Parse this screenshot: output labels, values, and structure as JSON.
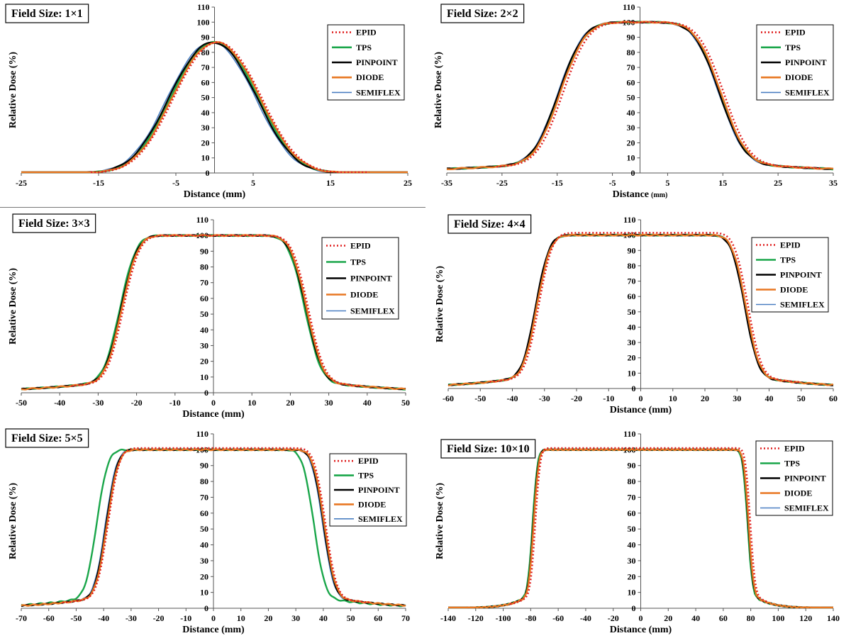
{
  "figure": {
    "legend_entries": [
      "EPID",
      "TPS",
      "PINPOINT",
      "DIODE",
      "SEMIFLEX"
    ],
    "colors": {
      "EPID": "#e02020",
      "TPS": "#1aa64a",
      "PINPOINT": "#000000",
      "DIODE": "#e87722",
      "SEMIFLEX": "#4a7fc1"
    }
  },
  "chart_data": [
    {
      "type": "line",
      "title": "Field Size: 1×1",
      "xlabel": "Distance (mm)",
      "ylabel": "Relative Dose (%)",
      "xlim": [
        -25,
        25
      ],
      "ylim": [
        0,
        110
      ],
      "xticks": [
        -25,
        -15,
        -5,
        5,
        15,
        25
      ],
      "yticks": [
        0,
        10,
        20,
        30,
        40,
        50,
        60,
        70,
        80,
        90,
        100,
        110
      ],
      "legend_position": "top-right",
      "profile": {
        "half_width": 5.7,
        "sigma": 3.8,
        "tail": 0.0
      },
      "series": [
        {
          "name": "EPID",
          "x_range": [
            -16,
            20
          ],
          "shift": 0.4,
          "scale": 1.0,
          "dotted": true
        },
        {
          "name": "TPS",
          "x_range": [
            -25,
            25
          ],
          "shift": 0.0,
          "scale": 1.0
        },
        {
          "name": "PINPOINT",
          "x_range": [
            -25,
            25
          ],
          "shift": -0.2,
          "scale": 1.0
        },
        {
          "name": "DIODE",
          "x_range": [
            -25,
            25
          ],
          "shift": 0.2,
          "scale": 1.0
        },
        {
          "name": "SEMIFLEX",
          "x_range": [
            -25,
            25
          ],
          "shift": -0.4,
          "scale": 1.0
        }
      ]
    },
    {
      "type": "line",
      "title": "Field Size: 2×2",
      "xlabel": "Distance",
      "xlabel_unit": "(mm)",
      "ylabel": "Relative Dose (%)",
      "xlim": [
        -35,
        35
      ],
      "ylim": [
        0,
        110
      ],
      "xticks": [
        -35,
        -25,
        -15,
        -5,
        5,
        15,
        25,
        35
      ],
      "yticks": [
        0,
        10,
        20,
        30,
        40,
        50,
        60,
        70,
        80,
        90,
        100,
        110
      ],
      "legend_position": "top-right",
      "profile": {
        "half_width": 14.5,
        "sigma": 3.6,
        "tail": 1.5
      },
      "series": [
        {
          "name": "EPID",
          "x_range": [
            -26,
            33
          ],
          "shift": 0.6,
          "scale": 1.0,
          "dotted": true
        },
        {
          "name": "TPS",
          "x_range": [
            -35,
            35
          ],
          "shift": 0.0,
          "scale": 1.0
        },
        {
          "name": "PINPOINT",
          "x_range": [
            -35,
            35
          ],
          "shift": -0.2,
          "scale": 1.0
        },
        {
          "name": "DIODE",
          "x_range": [
            -35,
            35
          ],
          "shift": 0.1,
          "scale": 1.0
        },
        {
          "name": "SEMIFLEX",
          "x_range": [
            -35,
            35
          ],
          "shift": -0.3,
          "scale": 1.0
        }
      ]
    },
    {
      "type": "line",
      "title": "Field Size: 3×3",
      "xlabel": "Distance (mm)",
      "ylabel": "Relative Dose (%)",
      "xlim": [
        -50,
        50
      ],
      "ylim": [
        0,
        110
      ],
      "xticks": [
        -50,
        -40,
        -30,
        -20,
        -10,
        0,
        10,
        20,
        30,
        40,
        50
      ],
      "yticks": [
        0,
        10,
        20,
        30,
        40,
        50,
        60,
        70,
        80,
        90,
        100,
        110
      ],
      "legend_position": "right",
      "profile": {
        "half_width": 24.0,
        "sigma": 3.3,
        "tail": 2.5
      },
      "series": [
        {
          "name": "EPID",
          "x_range": [
            -37,
            38
          ],
          "shift": 0.6,
          "scale": 1.0,
          "dotted": true
        },
        {
          "name": "TPS",
          "x_range": [
            -50,
            50
          ],
          "shift": -0.3,
          "scale": 1.0
        },
        {
          "name": "PINPOINT",
          "x_range": [
            -50,
            50
          ],
          "shift": 0.0,
          "scale": 1.0
        },
        {
          "name": "DIODE",
          "x_range": [
            -50,
            50
          ],
          "shift": 0.2,
          "scale": 1.0
        },
        {
          "name": "SEMIFLEX",
          "x_range": [
            -50,
            50
          ],
          "shift": 0.0,
          "scale": 1.0
        }
      ]
    },
    {
      "type": "line",
      "title": "Field Size: 4×4",
      "xlabel": "Distance (mm)",
      "ylabel": "Relative Dose (%)",
      "xlim": [
        -60,
        60
      ],
      "ylim": [
        0,
        110
      ],
      "xticks": [
        -60,
        -50,
        -40,
        -30,
        -20,
        -10,
        0,
        10,
        20,
        30,
        40,
        50,
        60
      ],
      "yticks": [
        0,
        10,
        20,
        30,
        40,
        50,
        60,
        70,
        80,
        90,
        100,
        110
      ],
      "legend_position": "right",
      "profile": {
        "half_width": 32.5,
        "sigma": 3.3,
        "tail": 3.0
      },
      "series": [
        {
          "name": "EPID",
          "x_range": [
            -47,
            50
          ],
          "shift": 0.8,
          "scale": 1.015,
          "dotted": true
        },
        {
          "name": "TPS",
          "x_range": [
            -60,
            60
          ],
          "shift": 0.0,
          "scale": 1.0
        },
        {
          "name": "PINPOINT",
          "x_range": [
            -60,
            60
          ],
          "shift": -0.2,
          "scale": 1.0
        },
        {
          "name": "DIODE",
          "x_range": [
            -60,
            60
          ],
          "shift": 0.2,
          "scale": 1.0
        },
        {
          "name": "SEMIFLEX",
          "x_range": [
            -60,
            60
          ],
          "shift": 0.0,
          "scale": 1.0
        }
      ]
    },
    {
      "type": "line",
      "title": "Field Size: 5×5",
      "xlabel": "Distance (mm)",
      "ylabel": "Relative Dose (%)",
      "xlim": [
        -70,
        70
      ],
      "ylim": [
        0,
        110
      ],
      "xticks": [
        -70,
        -60,
        -50,
        -40,
        -30,
        -20,
        -10,
        0,
        10,
        20,
        30,
        40,
        50,
        60,
        70
      ],
      "yticks": [
        0,
        10,
        20,
        30,
        40,
        50,
        60,
        70,
        80,
        90,
        100,
        110
      ],
      "legend_position": "right",
      "profile": {
        "half_width": 39.5,
        "sigma": 3.2,
        "tail": 2.0
      },
      "series": [
        {
          "name": "EPID",
          "x_range": [
            -55,
            57
          ],
          "shift": 1.2,
          "scale": 1.01,
          "dotted": true
        },
        {
          "name": "TPS",
          "x_range": [
            -70,
            70
          ],
          "shift": -3.0,
          "scale": 1.0
        },
        {
          "name": "PINPOINT",
          "x_range": [
            -70,
            70
          ],
          "shift": 0.5,
          "scale": 1.0
        },
        {
          "name": "DIODE",
          "x_range": [
            -70,
            70
          ],
          "shift": 0.8,
          "scale": 1.0
        },
        {
          "name": "SEMIFLEX",
          "x_range": [
            -70,
            70
          ],
          "shift": 0.2,
          "scale": 1.0
        }
      ]
    },
    {
      "type": "line",
      "title": "Field Size: 10×10",
      "xlabel": "Distance (mm)",
      "ylabel": "Relative Dose (%)",
      "xlim": [
        -140,
        140
      ],
      "ylim": [
        0,
        110
      ],
      "xticks": [
        -140,
        -120,
        -100,
        -80,
        -60,
        -40,
        -20,
        0,
        20,
        40,
        60,
        80,
        100,
        120,
        140
      ],
      "yticks": [
        0,
        10,
        20,
        30,
        40,
        50,
        60,
        70,
        80,
        90,
        100,
        110
      ],
      "legend_position": "top-right",
      "profile": {
        "half_width": 78.0,
        "sigma": 2.8,
        "tail": 5.0,
        "tail_slope": 0.08
      },
      "series": [
        {
          "name": "EPID",
          "x_range": [
            -95,
            93
          ],
          "shift": 1.5,
          "scale": 1.01,
          "dotted": true
        },
        {
          "name": "TPS",
          "x_range": [
            -140,
            140
          ],
          "shift": -0.5,
          "scale": 1.0
        },
        {
          "name": "PINPOINT",
          "x_range": [
            -140,
            140
          ],
          "shift": 0.0,
          "scale": 1.0
        },
        {
          "name": "DIODE",
          "x_range": [
            -140,
            140
          ],
          "shift": 0.3,
          "scale": 1.0
        },
        {
          "name": "SEMIFLEX",
          "x_range": [
            -140,
            140
          ],
          "shift": 0.0,
          "scale": 1.0
        }
      ]
    }
  ]
}
